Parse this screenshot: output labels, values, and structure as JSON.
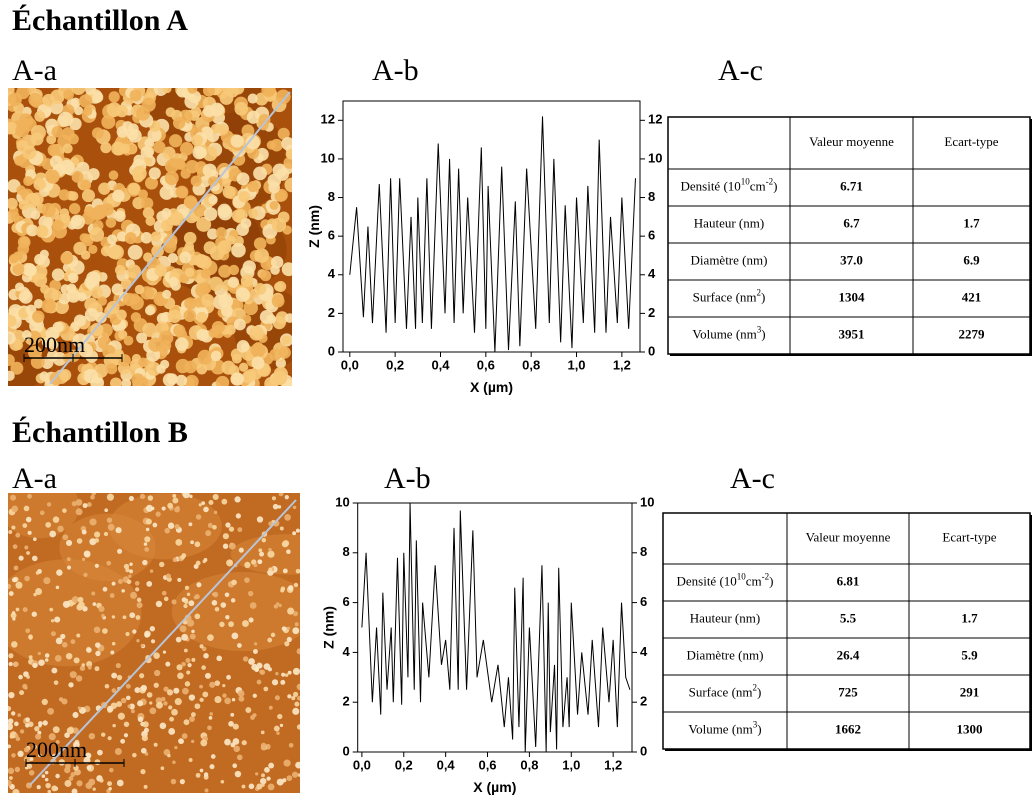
{
  "samples": [
    {
      "title": "Échantillon A",
      "panels": [
        "A-a",
        "A-b",
        "A-c"
      ],
      "scale_label": "200nm",
      "table": {
        "columns": [
          "Valeur moyenne",
          "Ecart-type"
        ],
        "rows": [
          {
            "label": [
              "Densité (10",
              "10",
              "cm",
              "-2",
              ")"
            ],
            "values": [
              "6.71",
              null
            ]
          },
          {
            "label": [
              "Hauteur (nm)"
            ],
            "values": [
              "6.7",
              "1.7"
            ]
          },
          {
            "label": [
              "Diamètre (nm)"
            ],
            "values": [
              "37.0",
              "6.9"
            ]
          },
          {
            "label": [
              "Surface (nm",
              "2",
              ")"
            ],
            "values": [
              "1304",
              "421"
            ]
          },
          {
            "label": [
              "Volume (nm",
              "3",
              ")"
            ],
            "values": [
              "3951",
              "2279"
            ]
          }
        ]
      }
    },
    {
      "title": "Échantillon B",
      "panels": [
        "A-a",
        "A-b",
        "A-c"
      ],
      "scale_label": "200nm",
      "table": {
        "columns": [
          "Valeur moyenne",
          "Ecart-type"
        ],
        "rows": [
          {
            "label": [
              "Densité (10",
              "10",
              "cm",
              "-2",
              ")"
            ],
            "values": [
              "6.81",
              null
            ]
          },
          {
            "label": [
              "Hauteur (nm)"
            ],
            "values": [
              "5.5",
              "1.7"
            ]
          },
          {
            "label": [
              "Diamètre (nm)"
            ],
            "values": [
              "26.4",
              "5.9"
            ]
          },
          {
            "label": [
              "Surface (nm",
              "2",
              ")"
            ],
            "values": [
              "725",
              "291"
            ]
          },
          {
            "label": [
              "Volume (nm",
              "3",
              ")"
            ],
            "values": [
              "1662",
              "1300"
            ]
          }
        ]
      }
    }
  ],
  "chart_data": [
    {
      "type": "line",
      "x_label": "X (µm)",
      "y_label": "Z (nm)",
      "color": "#000000",
      "mirror_y_axis": true,
      "xlim": [
        -0.03,
        1.28
      ],
      "ylim": [
        0,
        13
      ],
      "xticks": [
        {
          "value": 0,
          "label": "0,0"
        },
        {
          "value": 0.2,
          "label": "0,2"
        },
        {
          "value": 0.4,
          "label": "0,4"
        },
        {
          "value": 0.6,
          "label": "0,6"
        },
        {
          "value": 0.8,
          "label": "0,8"
        },
        {
          "value": 1.0,
          "label": "1,0"
        },
        {
          "value": 1.2,
          "label": "1,2"
        }
      ],
      "yticks": [
        0,
        2,
        4,
        6,
        8,
        10,
        12
      ],
      "x": [
        0,
        0.03,
        0.06,
        0.08,
        0.1,
        0.13,
        0.16,
        0.18,
        0.2,
        0.22,
        0.25,
        0.27,
        0.29,
        0.3,
        0.32,
        0.34,
        0.36,
        0.39,
        0.42,
        0.44,
        0.46,
        0.48,
        0.5,
        0.52,
        0.55,
        0.58,
        0.6,
        0.61,
        0.64,
        0.67,
        0.7,
        0.73,
        0.75,
        0.78,
        0.82,
        0.85,
        0.88,
        0.9,
        0.93,
        0.95,
        0.98,
        1.0,
        1.03,
        1.05,
        1.08,
        1.1,
        1.13,
        1.15,
        1.18,
        1.2,
        1.23,
        1.26
      ],
      "values": [
        4,
        7.5,
        1.8,
        6.5,
        1.5,
        8.7,
        1,
        9,
        1.5,
        9,
        1.2,
        7,
        1.2,
        8,
        1.5,
        9,
        1.2,
        10.8,
        2,
        10,
        1.5,
        9.5,
        2,
        8,
        1,
        10.6,
        1.2,
        8.6,
        0,
        9.6,
        0.1,
        7.8,
        0.3,
        9.5,
        1.2,
        12.2,
        1.5,
        10,
        0.5,
        7.6,
        0.2,
        8,
        1.5,
        8.6,
        1,
        11,
        1,
        7,
        1.5,
        8,
        1.2,
        9
      ]
    },
    {
      "type": "line",
      "x_label": "X (µm)",
      "y_label": "Z (nm)",
      "color": "#000000",
      "mirror_y_axis": true,
      "xlim": [
        -0.02,
        1.29
      ],
      "ylim": [
        0,
        10
      ],
      "xticks": [
        {
          "value": 0,
          "label": "0,0"
        },
        {
          "value": 0.2,
          "label": "0,2"
        },
        {
          "value": 0.4,
          "label": "0,4"
        },
        {
          "value": 0.6,
          "label": "0,6"
        },
        {
          "value": 0.8,
          "label": "0,8"
        },
        {
          "value": 1.0,
          "label": "1,0"
        },
        {
          "value": 1.2,
          "label": "1,2"
        }
      ],
      "yticks": [
        0,
        2,
        4,
        6,
        8,
        10
      ],
      "x": [
        0,
        0.02,
        0.05,
        0.07,
        0.09,
        0.1,
        0.12,
        0.14,
        0.15,
        0.17,
        0.19,
        0.2,
        0.22,
        0.23,
        0.25,
        0.26,
        0.28,
        0.29,
        0.32,
        0.35,
        0.38,
        0.4,
        0.42,
        0.44,
        0.46,
        0.47,
        0.5,
        0.53,
        0.55,
        0.58,
        0.62,
        0.65,
        0.68,
        0.7,
        0.72,
        0.73,
        0.75,
        0.77,
        0.78,
        0.8,
        0.83,
        0.86,
        0.88,
        0.89,
        0.9,
        0.92,
        0.93,
        0.94,
        0.96,
        0.98,
        0.99,
        1.0,
        1.03,
        1.05,
        1.08,
        1.1,
        1.13,
        1.15,
        1.18,
        1.2,
        1.22,
        1.24,
        1.26,
        1.28
      ],
      "values": [
        5,
        8,
        2,
        5,
        1.5,
        6.4,
        2.5,
        5,
        2,
        7.8,
        1.9,
        8,
        3,
        10,
        2.5,
        8.5,
        2,
        6,
        3,
        7.5,
        3.5,
        4.5,
        2.5,
        9,
        2.5,
        9.7,
        2.5,
        8.9,
        3,
        4.5,
        2,
        3.5,
        1,
        3,
        0.5,
        6.6,
        1,
        7,
        0,
        5,
        0.2,
        7.5,
        0,
        6,
        0.8,
        3.5,
        0.1,
        7.4,
        1,
        3,
        1,
        6,
        1.5,
        4,
        1.5,
        4.5,
        1,
        5,
        2,
        4.5,
        1,
        6,
        3,
        2.5
      ]
    }
  ]
}
